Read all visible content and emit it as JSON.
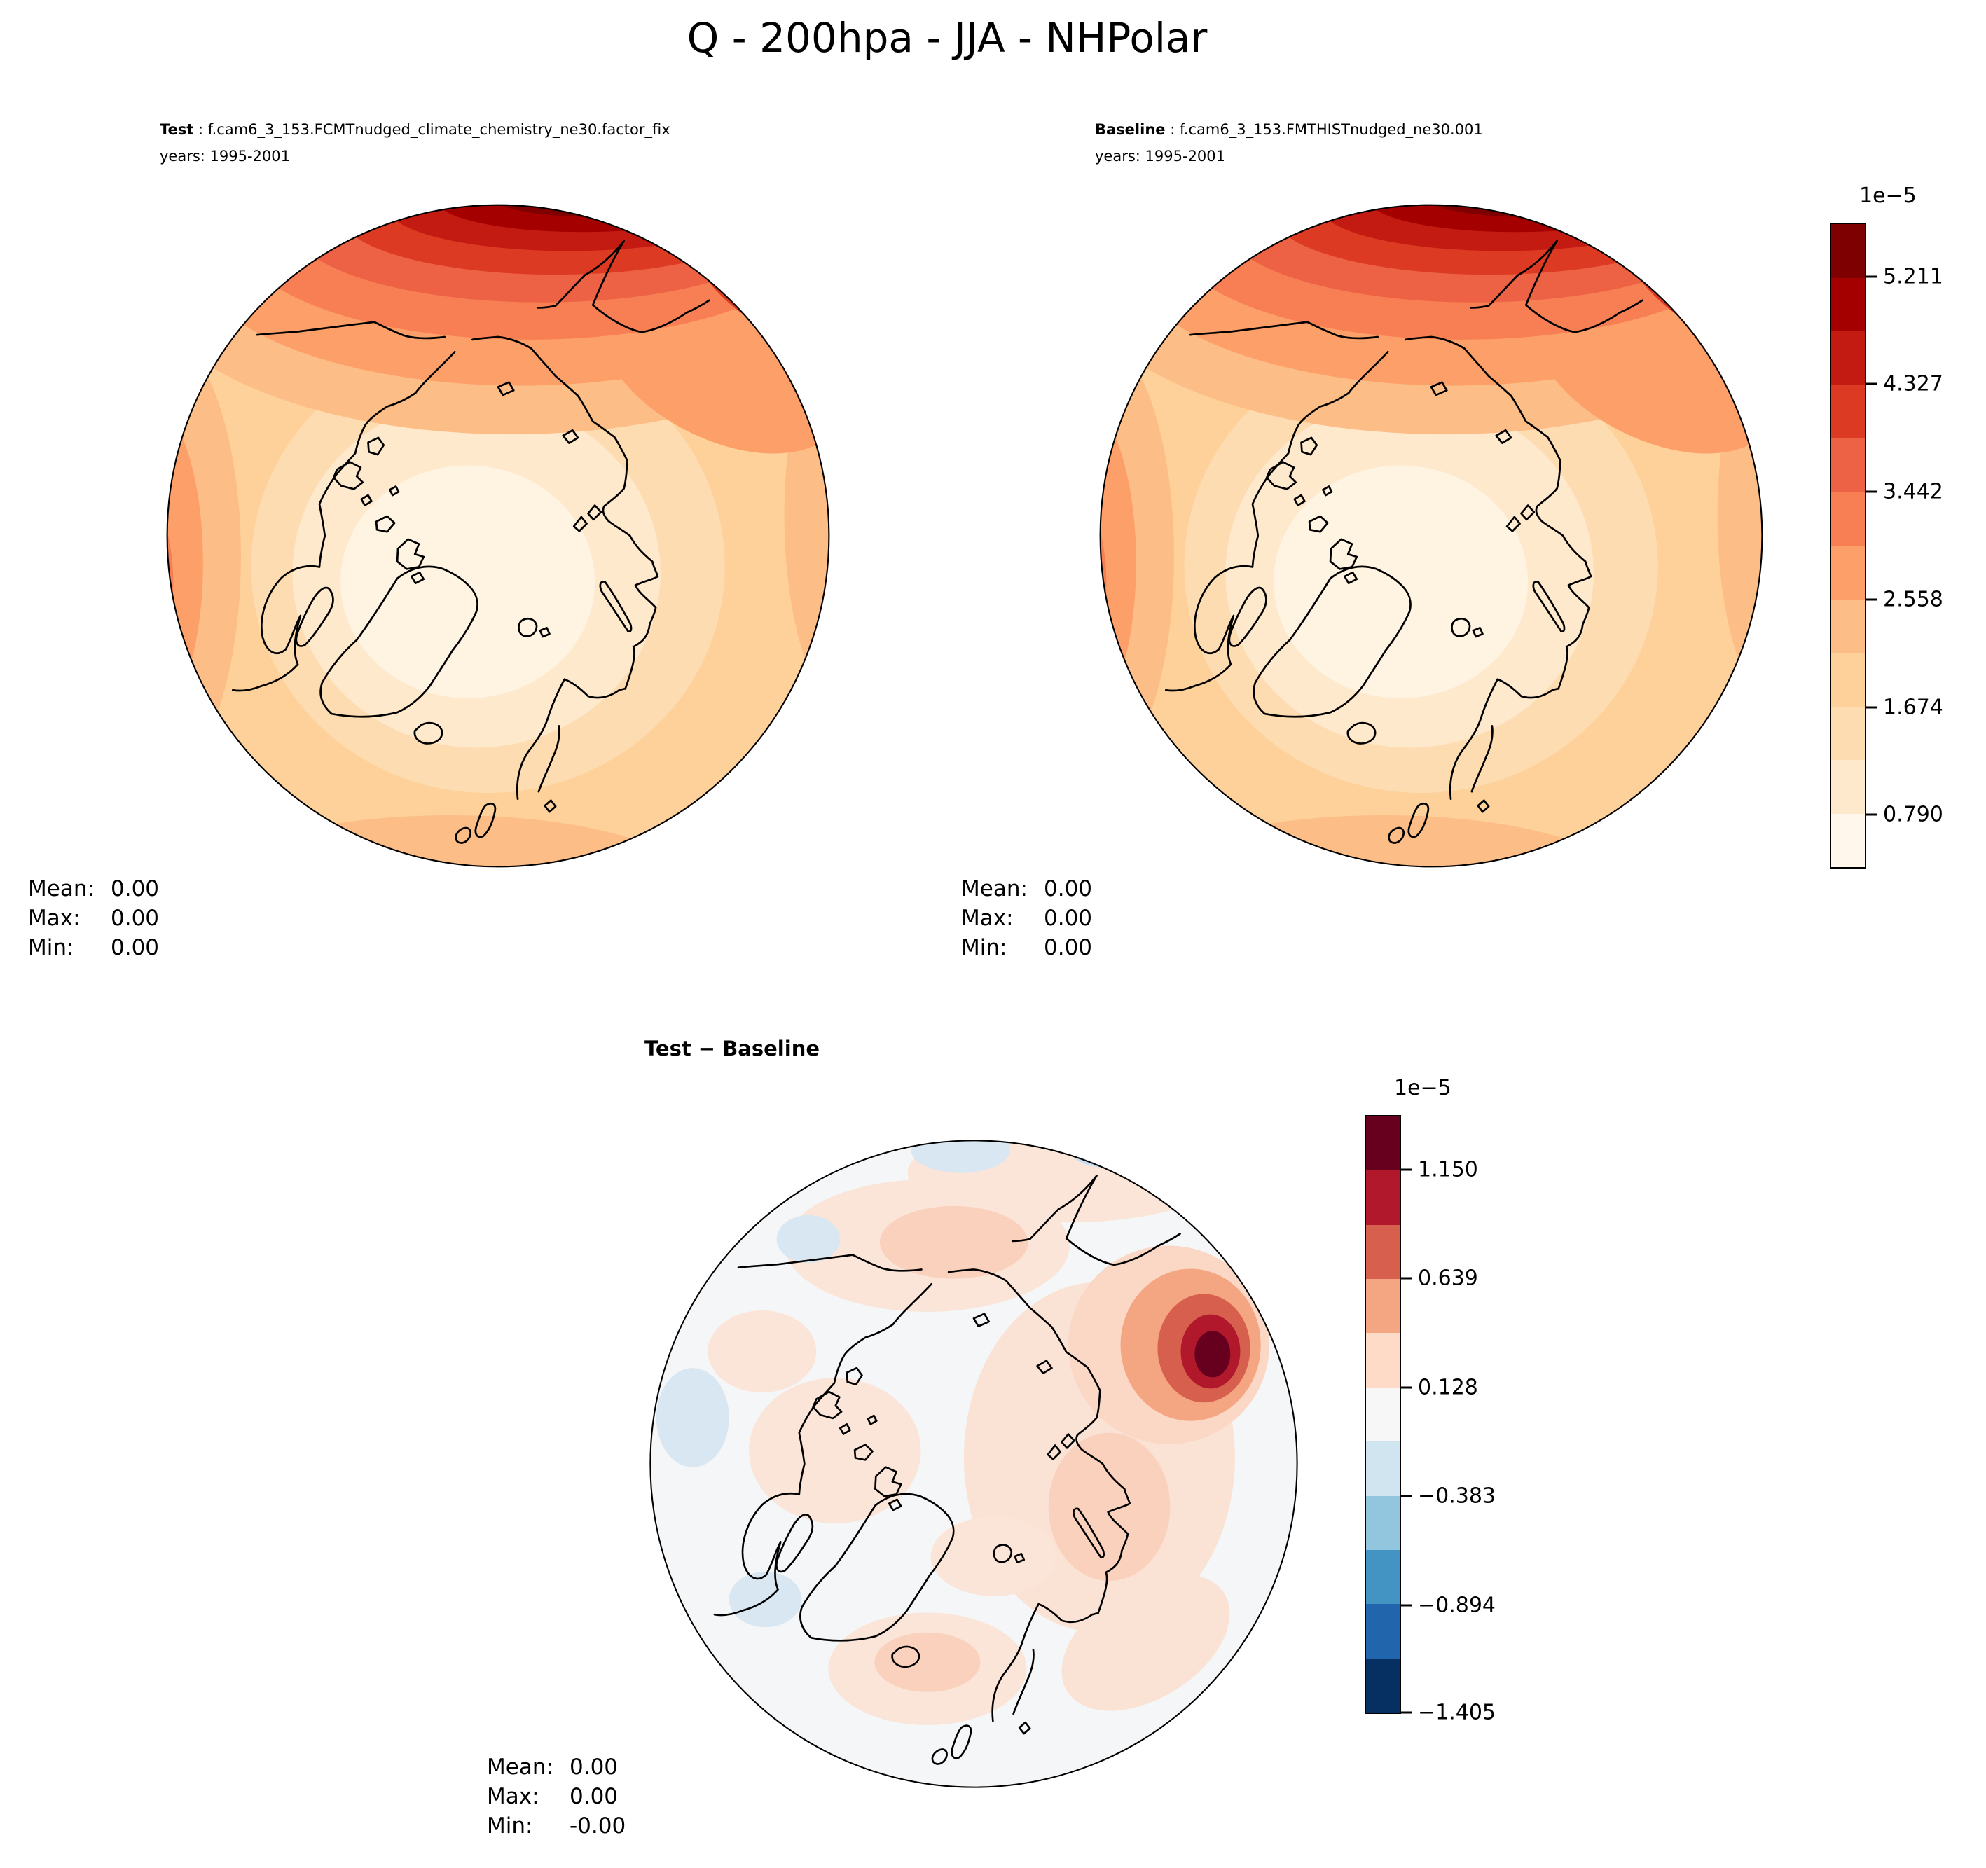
{
  "title": "Q - 200hpa - JJA - NHPolar",
  "panels": {
    "test": {
      "label": "Test",
      "dataset_suffix": " : f.cam6_3_153.FCMTnudged_climate_chemistry_ne30.factor_fix",
      "years": "years: 1995-2001",
      "stats": [
        {
          "label": "Mean:",
          "value": "0.00"
        },
        {
          "label": "Max:",
          "value": "0.00"
        },
        {
          "label": "Min:",
          "value": "0.00"
        }
      ]
    },
    "baseline": {
      "label": "Baseline",
      "dataset_suffix": " : f.cam6_3_153.FMTHISTnudged_ne30.001",
      "years": "years: 1995-2001",
      "stats": [
        {
          "label": "Mean:",
          "value": "0.00"
        },
        {
          "label": "Max:",
          "value": "0.00"
        },
        {
          "label": "Min:",
          "value": "0.00"
        }
      ]
    },
    "diff": {
      "title": "Test − Baseline",
      "stats": [
        {
          "label": "Mean:",
          "value": "0.00"
        },
        {
          "label": "Max:",
          "value": "0.00"
        },
        {
          "label": "Min:",
          "value": "-0.00"
        }
      ]
    }
  },
  "colorbar_main": {
    "offset_label": "1e−5",
    "ticks": [
      "5.211",
      "4.327",
      "3.442",
      "2.558",
      "1.674",
      "0.790"
    ],
    "band_colors_bottom_to_top": [
      "#fff7ec",
      "#fee9cd",
      "#fedcb1",
      "#fdd199",
      "#fdbd86",
      "#fd9f68",
      "#f77f53",
      "#ed6244",
      "#dc3a23",
      "#c31a11",
      "#a50000",
      "#7f0000"
    ]
  },
  "colorbar_diff": {
    "offset_label": "1e−5",
    "ticks": [
      "1.150",
      "0.639",
      "0.128",
      "−0.383",
      "−0.894",
      "−1.405"
    ],
    "band_colors_bottom_to_top": [
      "#053061",
      "#2166ac",
      "#4393c3",
      "#92c5de",
      "#d1e5f0",
      "#f7f7f7",
      "#fddbc7",
      "#f4a582",
      "#d6604d",
      "#b2182b",
      "#67001f"
    ]
  },
  "chart_data": [
    {
      "type": "heatmap",
      "panel": "test",
      "title": "Test : f.cam6_3_153.FCMTnudged_climate_chemistry_ne30.factor_fix",
      "variable": "Q",
      "level": "200hpa",
      "season": "JJA",
      "region": "NHPolar",
      "years": "1995-2001",
      "projection": "north_polar_stereographic",
      "colormap": "OrRd",
      "scale_factor": "1e−5",
      "colorbar_tick_values": [
        0.79,
        1.674,
        2.558,
        3.442,
        4.327,
        5.211
      ],
      "stats": {
        "mean": 0.0,
        "max": 0.0,
        "min": 0.0
      }
    },
    {
      "type": "heatmap",
      "panel": "baseline",
      "title": "Baseline : f.cam6_3_153.FMTHISTnudged_ne30.001",
      "variable": "Q",
      "level": "200hpa",
      "season": "JJA",
      "region": "NHPolar",
      "years": "1995-2001",
      "projection": "north_polar_stereographic",
      "colormap": "OrRd",
      "scale_factor": "1e−5",
      "colorbar_tick_values": [
        0.79,
        1.674,
        2.558,
        3.442,
        4.327,
        5.211
      ],
      "stats": {
        "mean": 0.0,
        "max": 0.0,
        "min": 0.0
      }
    },
    {
      "type": "heatmap",
      "panel": "difference",
      "title": "Test − Baseline",
      "variable": "Q",
      "level": "200hpa",
      "season": "JJA",
      "region": "NHPolar",
      "projection": "north_polar_stereographic",
      "colormap": "RdBu_r",
      "scale_factor": "1e−5",
      "colorbar_tick_values": [
        -1.405,
        -0.894,
        -0.383,
        0.128,
        0.639,
        1.15
      ],
      "stats": {
        "mean": 0.0,
        "max": 0.0,
        "min": -0.0
      }
    }
  ]
}
